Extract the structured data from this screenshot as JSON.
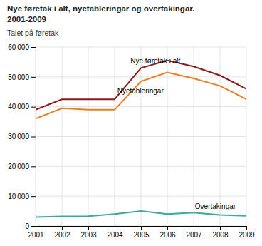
{
  "chart_data": {
    "type": "line",
    "title": "Nye føretak i alt, nyetableringar og overtakingar.\n2001-2009",
    "y_label": "Talet på føretak",
    "x": [
      2001,
      2002,
      2003,
      2004,
      2005,
      2006,
      2007,
      2008,
      2009
    ],
    "series": [
      {
        "color": "#8B1A1A",
        "values": [
          39000,
          42500,
          42500,
          42500,
          53000,
          55500,
          53500,
          50500,
          46000
        ]
      },
      {
        "color": "#E88020",
        "values": [
          36000,
          39500,
          39000,
          39000,
          48500,
          51500,
          49500,
          47000,
          42500
        ]
      },
      {
        "color": "#3AA8A0",
        "values": [
          3000,
          3200,
          3300,
          4000,
          5000,
          4000,
          4500,
          3700,
          3400
        ]
      }
    ],
    "annotations": [
      {
        "text": "Nye føretak i alt",
        "x": 2004.6,
        "y": 54500
      },
      {
        "text": "Nyetableringar",
        "x": 2004.1,
        "y": 44500
      },
      {
        "text": "Overtakingar",
        "x": 2007.05,
        "y": 5800
      }
    ],
    "xlim": [
      2001,
      2009
    ],
    "xticks": [
      2001,
      2002,
      2003,
      2004,
      2005,
      2006,
      2007,
      2008,
      2009
    ],
    "ylim": [
      0,
      60000
    ],
    "yticks": [
      0,
      {
        "value": 10000,
        "label": "10 000"
      },
      {
        "value": 20000,
        "label": "20 000"
      },
      {
        "value": 30000,
        "label": "30 000"
      },
      {
        "value": 40000,
        "label": "40 000"
      },
      {
        "value": 50000,
        "label": "50 000"
      },
      {
        "value": 60000,
        "label": "60 000"
      }
    ],
    "grid": true
  }
}
